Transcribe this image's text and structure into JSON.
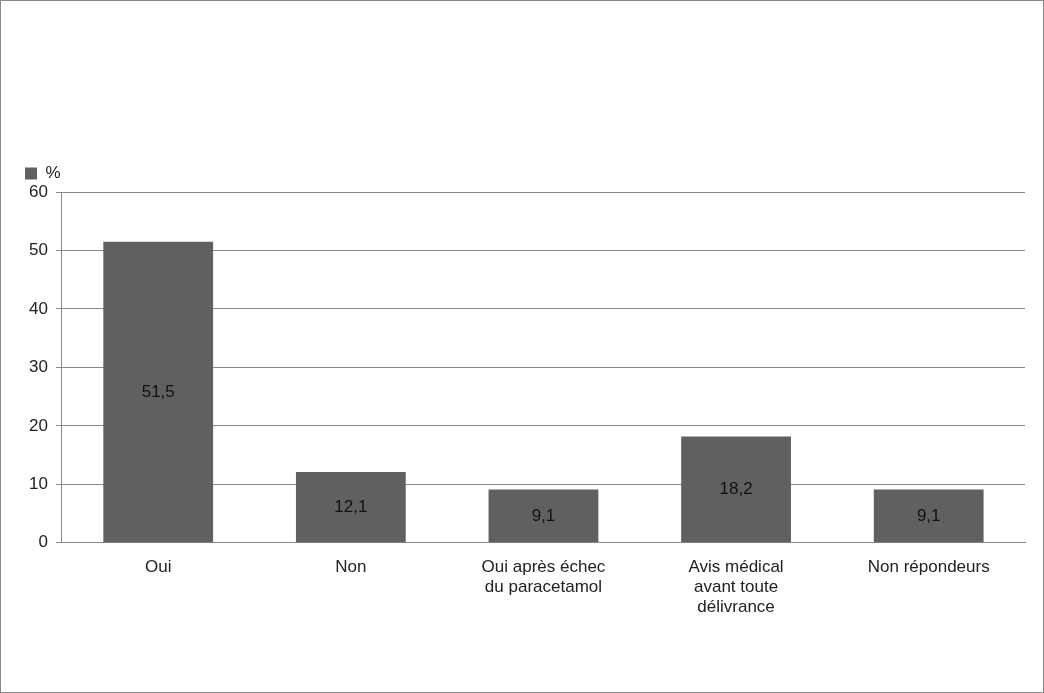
{
  "chart_data": {
    "type": "bar",
    "categories": [
      "Oui",
      "Non",
      "Oui après échec du paracetamol",
      "Avis médical avant toute délivrance",
      "Non répondeurs"
    ],
    "series": [
      {
        "name": "%",
        "color": "#606060",
        "values": [
          51.5,
          12.1,
          9.1,
          18.2,
          9.1
        ]
      }
    ],
    "value_labels": [
      "51,5",
      "12,1",
      "9,1",
      "18,2",
      "9,1"
    ],
    "ylim": [
      0,
      60
    ],
    "yticks": [
      0,
      10,
      20,
      30,
      40,
      50,
      60
    ],
    "grid": "y",
    "legend": "top left"
  }
}
